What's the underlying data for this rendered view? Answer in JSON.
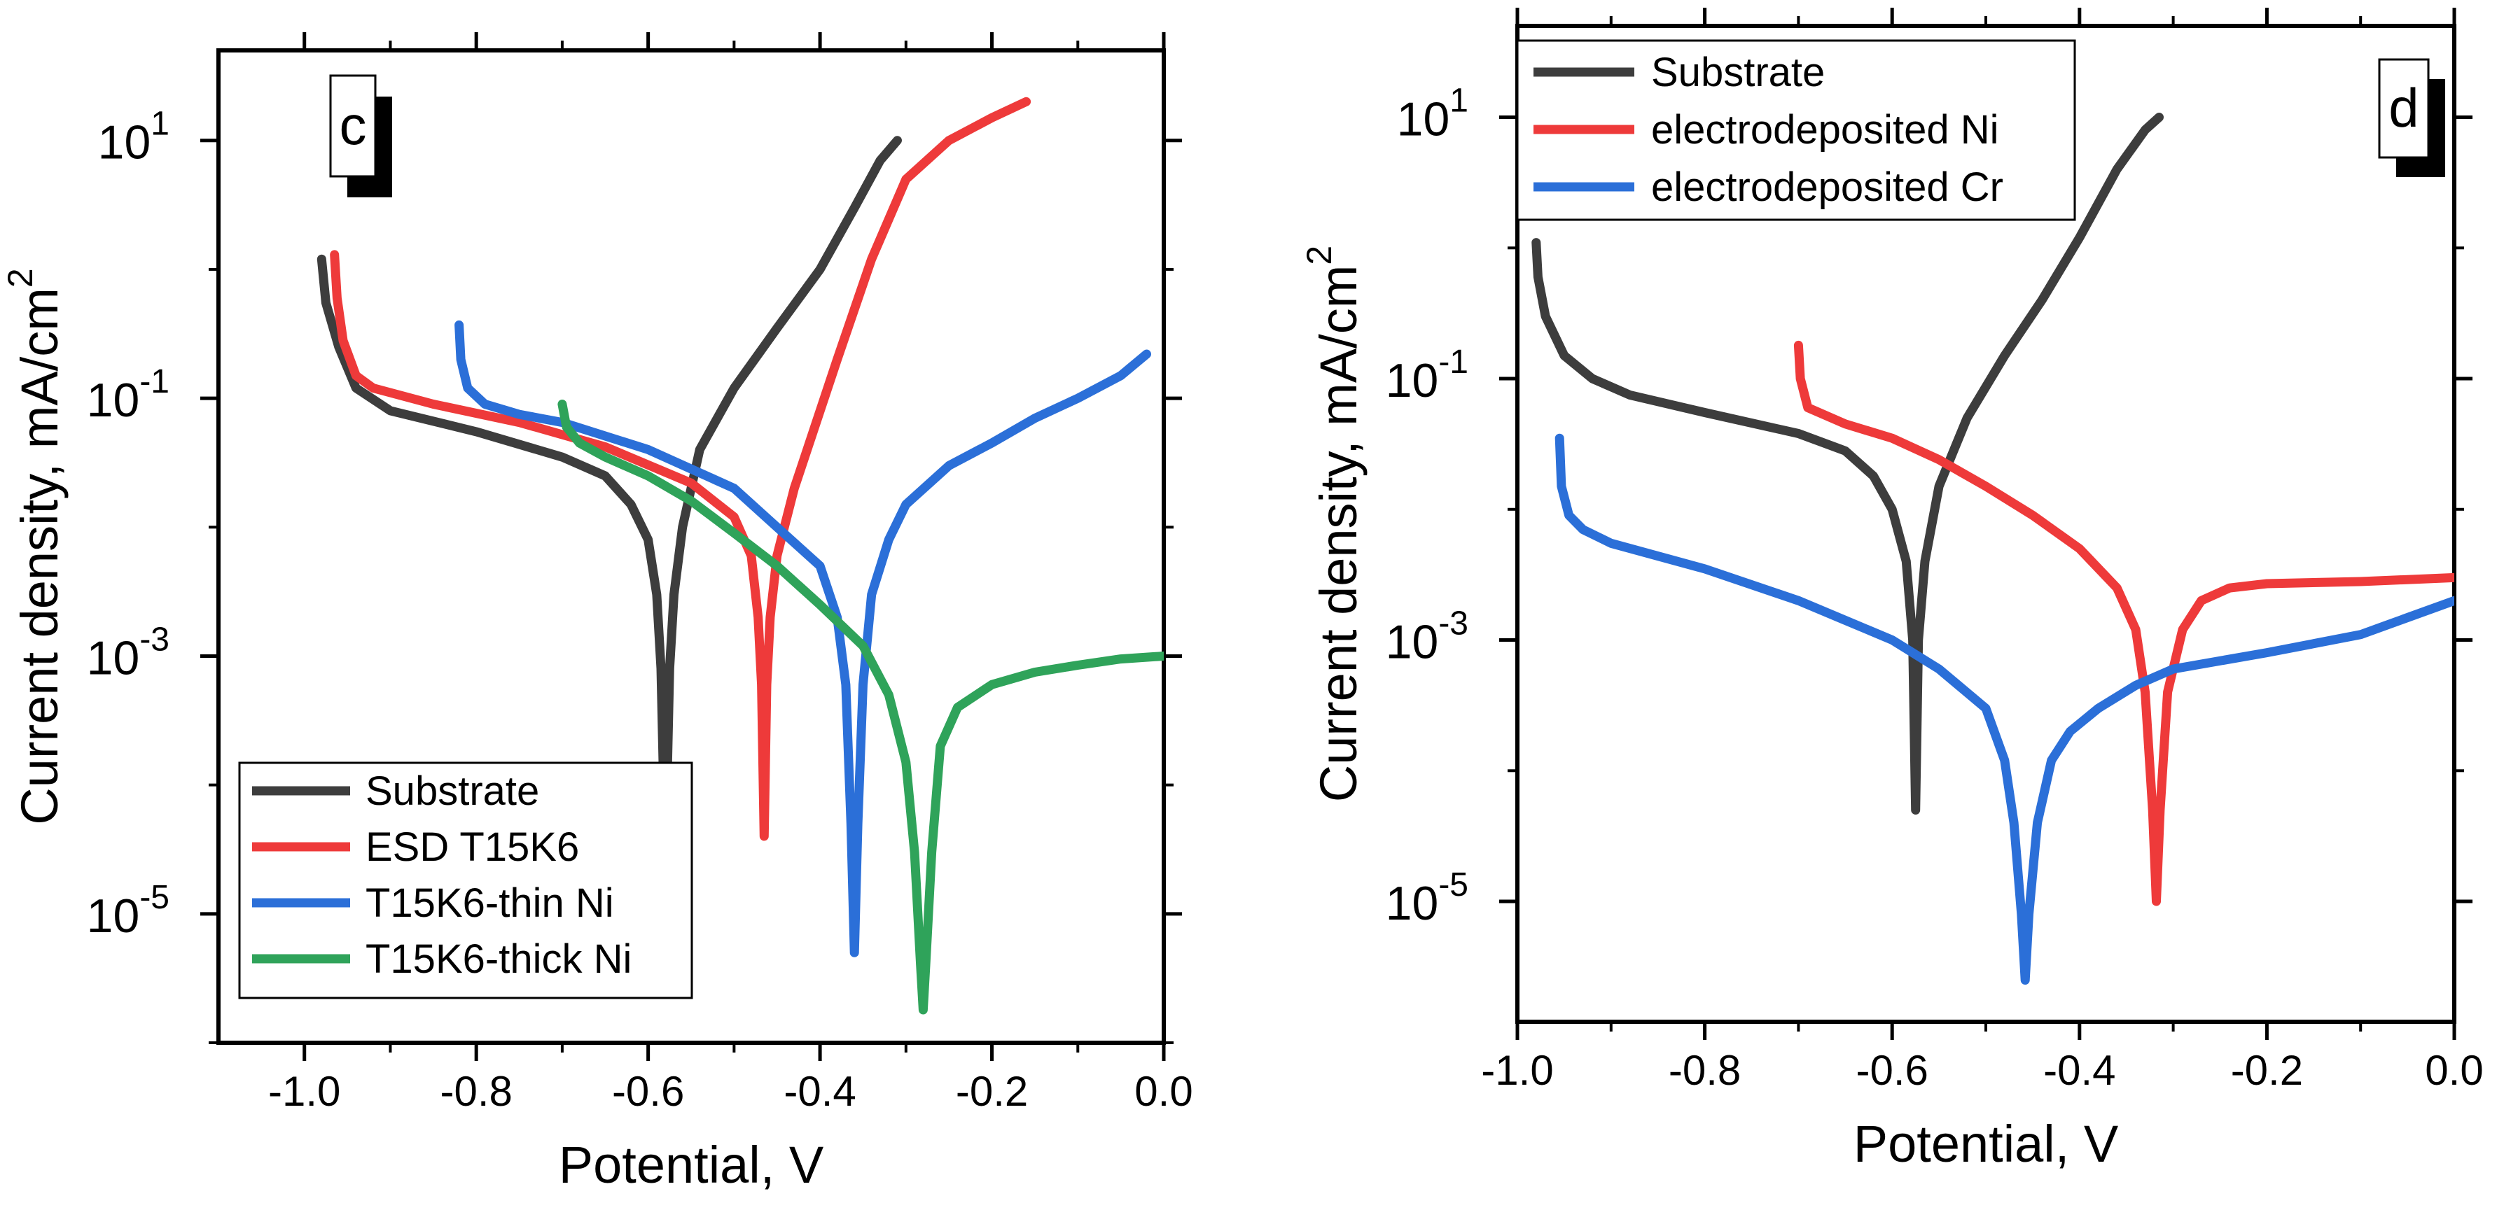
{
  "chart_data": [
    {
      "type": "line",
      "panel_label": "c",
      "xlabel": "Potential, V",
      "ylabel": "Current density, mA/cm",
      "ylabel_superscript": "2",
      "yscale": "log",
      "xlim": [
        -1.1,
        0.0
      ],
      "ylim": [
        1e-06,
        50
      ],
      "x_ticks": [
        -1.0,
        -0.8,
        -0.6,
        -0.4,
        -0.2,
        0.0
      ],
      "x_tick_labels": [
        "-1.0",
        "-0.8",
        "-0.6",
        "-0.4",
        "-0.2",
        "0.0"
      ],
      "y_ticks": [
        {
          "value": 10,
          "base": "10",
          "exp": "1"
        },
        {
          "value": 0.1,
          "base": "10",
          "exp": "-1"
        },
        {
          "value": 0.001,
          "base": "10",
          "exp": "-3"
        },
        {
          "value": 1e-05,
          "base": "10",
          "exp": "-5"
        }
      ],
      "legend_position": "bottom-left",
      "series": [
        {
          "name": "Substrate",
          "color": "#3d3d3d",
          "points": [
            [
              -0.98,
              1.2
            ],
            [
              -0.975,
              0.55
            ],
            [
              -0.96,
              0.25
            ],
            [
              -0.94,
              0.12
            ],
            [
              -0.9,
              0.08
            ],
            [
              -0.8,
              0.055
            ],
            [
              -0.7,
              0.035
            ],
            [
              -0.65,
              0.025
            ],
            [
              -0.62,
              0.015
            ],
            [
              -0.6,
              0.008
            ],
            [
              -0.59,
              0.003
            ],
            [
              -0.585,
              0.0008
            ],
            [
              -0.582,
              0.0001
            ],
            [
              -0.58,
              5e-05
            ],
            [
              -0.578,
              0.0001
            ],
            [
              -0.575,
              0.0008
            ],
            [
              -0.57,
              0.003
            ],
            [
              -0.56,
              0.01
            ],
            [
              -0.54,
              0.04
            ],
            [
              -0.5,
              0.12
            ],
            [
              -0.45,
              0.35
            ],
            [
              -0.4,
              1.0
            ],
            [
              -0.36,
              3
            ],
            [
              -0.33,
              7
            ],
            [
              -0.31,
              10
            ]
          ]
        },
        {
          "name": "ESD T15K6",
          "color": "#ee3a3a",
          "points": [
            [
              -0.965,
              1.3
            ],
            [
              -0.962,
              0.6
            ],
            [
              -0.955,
              0.28
            ],
            [
              -0.94,
              0.15
            ],
            [
              -0.92,
              0.12
            ],
            [
              -0.85,
              0.09
            ],
            [
              -0.75,
              0.065
            ],
            [
              -0.65,
              0.042
            ],
            [
              -0.55,
              0.022
            ],
            [
              -0.5,
              0.012
            ],
            [
              -0.48,
              0.006
            ],
            [
              -0.472,
              0.002
            ],
            [
              -0.468,
              0.0006
            ],
            [
              -0.465,
              4e-05
            ],
            [
              -0.462,
              0.0006
            ],
            [
              -0.458,
              0.002
            ],
            [
              -0.45,
              0.006
            ],
            [
              -0.43,
              0.02
            ],
            [
              -0.38,
              0.2
            ],
            [
              -0.34,
              1.2
            ],
            [
              -0.3,
              5
            ],
            [
              -0.25,
              10
            ],
            [
              -0.2,
              15
            ],
            [
              -0.16,
              20
            ]
          ]
        },
        {
          "name": "T15K6-thin Ni",
          "color": "#2b6fd8",
          "points": [
            [
              -0.82,
              0.37
            ],
            [
              -0.818,
              0.2
            ],
            [
              -0.81,
              0.12
            ],
            [
              -0.79,
              0.09
            ],
            [
              -0.75,
              0.075
            ],
            [
              -0.7,
              0.065
            ],
            [
              -0.6,
              0.04
            ],
            [
              -0.5,
              0.02
            ],
            [
              -0.45,
              0.01
            ],
            [
              -0.4,
              0.005
            ],
            [
              -0.38,
              0.002
            ],
            [
              -0.37,
              0.0006
            ],
            [
              -0.364,
              5e-05
            ],
            [
              -0.36,
              5e-06
            ],
            [
              -0.356,
              5e-05
            ],
            [
              -0.35,
              0.0006
            ],
            [
              -0.34,
              0.003
            ],
            [
              -0.32,
              0.008
            ],
            [
              -0.3,
              0.015
            ],
            [
              -0.25,
              0.03
            ],
            [
              -0.2,
              0.045
            ],
            [
              -0.15,
              0.07
            ],
            [
              -0.1,
              0.1
            ],
            [
              -0.05,
              0.15
            ],
            [
              -0.02,
              0.22
            ]
          ]
        },
        {
          "name": "T15K6-thick Ni",
          "color": "#2fa35a",
          "points": [
            [
              -0.7,
              0.09
            ],
            [
              -0.695,
              0.06
            ],
            [
              -0.68,
              0.045
            ],
            [
              -0.65,
              0.035
            ],
            [
              -0.6,
              0.025
            ],
            [
              -0.55,
              0.016
            ],
            [
              -0.5,
              0.009
            ],
            [
              -0.45,
              0.005
            ],
            [
              -0.4,
              0.0025
            ],
            [
              -0.35,
              0.0012
            ],
            [
              -0.32,
              0.0005
            ],
            [
              -0.3,
              0.00015
            ],
            [
              -0.29,
              3e-05
            ],
            [
              -0.283,
              4e-06
            ],
            [
              -0.28,
              1.8e-06
            ],
            [
              -0.277,
              4e-06
            ],
            [
              -0.27,
              3e-05
            ],
            [
              -0.26,
              0.0002
            ],
            [
              -0.24,
              0.0004
            ],
            [
              -0.2,
              0.0006
            ],
            [
              -0.15,
              0.00075
            ],
            [
              -0.1,
              0.00085
            ],
            [
              -0.05,
              0.00095
            ],
            [
              0.0,
              0.001
            ]
          ]
        }
      ]
    },
    {
      "type": "line",
      "panel_label": "d",
      "xlabel": "Potential, V",
      "ylabel": "Current density, mA/cm",
      "ylabel_superscript": "2",
      "yscale": "log",
      "xlim": [
        -1.0,
        0.0
      ],
      "ylim": [
        1.2e-06,
        50
      ],
      "x_ticks": [
        -1.0,
        -0.8,
        -0.6,
        -0.4,
        -0.2,
        0.0
      ],
      "x_tick_labels": [
        "-1.0",
        "-0.8",
        "-0.6",
        "-0.4",
        "-0.2",
        "0.0"
      ],
      "y_ticks": [
        {
          "value": 10,
          "base": "10",
          "exp": "1"
        },
        {
          "value": 0.1,
          "base": "10",
          "exp": "-1"
        },
        {
          "value": 0.001,
          "base": "10",
          "exp": "-3"
        },
        {
          "value": 1e-05,
          "base": "10",
          "exp": "-5"
        }
      ],
      "legend_position": "top-left",
      "series": [
        {
          "name": "Substrate",
          "color": "#3d3d3d",
          "points": [
            [
              -0.98,
              1.1
            ],
            [
              -0.978,
              0.6
            ],
            [
              -0.97,
              0.3
            ],
            [
              -0.95,
              0.15
            ],
            [
              -0.92,
              0.1
            ],
            [
              -0.88,
              0.075
            ],
            [
              -0.8,
              0.055
            ],
            [
              -0.7,
              0.038
            ],
            [
              -0.65,
              0.028
            ],
            [
              -0.62,
              0.018
            ],
            [
              -0.6,
              0.01
            ],
            [
              -0.585,
              0.004
            ],
            [
              -0.578,
              0.001
            ],
            [
              -0.575,
              5e-05
            ],
            [
              -0.572,
              0.001
            ],
            [
              -0.565,
              0.004
            ],
            [
              -0.55,
              0.015
            ],
            [
              -0.52,
              0.05
            ],
            [
              -0.48,
              0.15
            ],
            [
              -0.44,
              0.4
            ],
            [
              -0.4,
              1.2
            ],
            [
              -0.36,
              4
            ],
            [
              -0.33,
              8
            ],
            [
              -0.315,
              10
            ]
          ]
        },
        {
          "name": "electrodeposited Ni",
          "color": "#ee3a3a",
          "points": [
            [
              -0.7,
              0.18
            ],
            [
              -0.698,
              0.1
            ],
            [
              -0.69,
              0.06
            ],
            [
              -0.65,
              0.045
            ],
            [
              -0.6,
              0.035
            ],
            [
              -0.55,
              0.024
            ],
            [
              -0.5,
              0.015
            ],
            [
              -0.45,
              0.009
            ],
            [
              -0.4,
              0.005
            ],
            [
              -0.36,
              0.0025
            ],
            [
              -0.34,
              0.0012
            ],
            [
              -0.33,
              0.0004
            ],
            [
              -0.322,
              5e-05
            ],
            [
              -0.318,
              1e-05
            ],
            [
              -0.314,
              5e-05
            ],
            [
              -0.306,
              0.0004
            ],
            [
              -0.29,
              0.0012
            ],
            [
              -0.27,
              0.002
            ],
            [
              -0.24,
              0.0025
            ],
            [
              -0.2,
              0.0027
            ],
            [
              -0.1,
              0.0028
            ],
            [
              0.0,
              0.003
            ]
          ]
        },
        {
          "name": "electrodeposited Cr",
          "color": "#2b6fd8",
          "points": [
            [
              -0.955,
              0.035
            ],
            [
              -0.953,
              0.015
            ],
            [
              -0.945,
              0.009
            ],
            [
              -0.93,
              0.007
            ],
            [
              -0.9,
              0.0055
            ],
            [
              -0.8,
              0.0035
            ],
            [
              -0.7,
              0.002
            ],
            [
              -0.6,
              0.001
            ],
            [
              -0.55,
              0.0006
            ],
            [
              -0.5,
              0.0003
            ],
            [
              -0.48,
              0.00012
            ],
            [
              -0.47,
              4e-05
            ],
            [
              -0.462,
              8e-06
            ],
            [
              -0.458,
              2.5e-06
            ],
            [
              -0.454,
              8e-06
            ],
            [
              -0.445,
              4e-05
            ],
            [
              -0.43,
              0.00012
            ],
            [
              -0.41,
              0.0002
            ],
            [
              -0.38,
              0.0003
            ],
            [
              -0.34,
              0.00045
            ],
            [
              -0.3,
              0.0006
            ],
            [
              -0.2,
              0.0008
            ],
            [
              -0.1,
              0.0011
            ],
            [
              0.0,
              0.002
            ]
          ]
        }
      ]
    }
  ]
}
